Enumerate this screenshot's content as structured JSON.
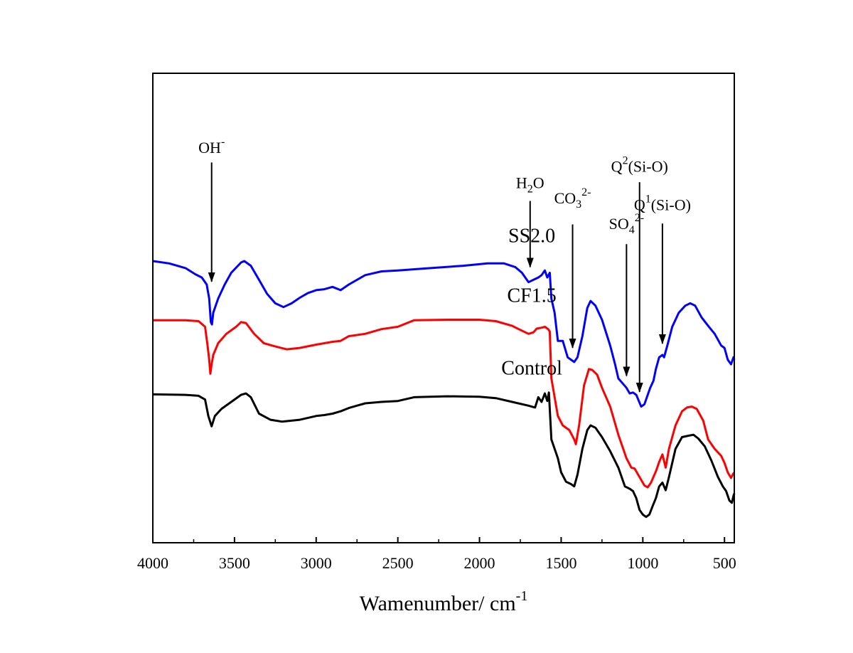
{
  "chart_data": {
    "type": "line",
    "title": "",
    "xlabel": "Wamenumber/ cm",
    "xlabel_sup": "-1",
    "ylabel": "",
    "xlim": [
      4000,
      440
    ],
    "x_reversed": true,
    "y_ticks_shown": false,
    "xticks": [
      "4000",
      "3500",
      "3000",
      "2500",
      "2000",
      "1500",
      "1000",
      "500"
    ],
    "xtick_values": [
      4000,
      3500,
      3000,
      2500,
      2000,
      1500,
      1000,
      500
    ],
    "ylim": [
      0,
      1
    ],
    "series": [
      {
        "name": "Control",
        "color": "#000000",
        "points": [
          [
            4000,
            0.316
          ],
          [
            3800,
            0.315
          ],
          [
            3720,
            0.313
          ],
          [
            3680,
            0.305
          ],
          [
            3660,
            0.27
          ],
          [
            3640,
            0.248
          ],
          [
            3620,
            0.27
          ],
          [
            3580,
            0.285
          ],
          [
            3520,
            0.3
          ],
          [
            3460,
            0.315
          ],
          [
            3430,
            0.318
          ],
          [
            3400,
            0.31
          ],
          [
            3350,
            0.275
          ],
          [
            3280,
            0.262
          ],
          [
            3210,
            0.258
          ],
          [
            3100,
            0.262
          ],
          [
            3000,
            0.27
          ],
          [
            2950,
            0.272
          ],
          [
            2900,
            0.275
          ],
          [
            2850,
            0.28
          ],
          [
            2800,
            0.287
          ],
          [
            2700,
            0.297
          ],
          [
            2600,
            0.3
          ],
          [
            2500,
            0.302
          ],
          [
            2400,
            0.31
          ],
          [
            2200,
            0.312
          ],
          [
            2000,
            0.311
          ],
          [
            1900,
            0.308
          ],
          [
            1800,
            0.3
          ],
          [
            1700,
            0.292
          ],
          [
            1660,
            0.288
          ],
          [
            1640,
            0.31
          ],
          [
            1620,
            0.3
          ],
          [
            1600,
            0.318
          ],
          [
            1585,
            0.302
          ],
          [
            1575,
            0.32
          ],
          [
            1560,
            0.22
          ],
          [
            1520,
            0.18
          ],
          [
            1500,
            0.15
          ],
          [
            1470,
            0.13
          ],
          [
            1440,
            0.125
          ],
          [
            1420,
            0.12
          ],
          [
            1400,
            0.145
          ],
          [
            1370,
            0.2
          ],
          [
            1340,
            0.24
          ],
          [
            1320,
            0.25
          ],
          [
            1290,
            0.245
          ],
          [
            1250,
            0.225
          ],
          [
            1200,
            0.195
          ],
          [
            1150,
            0.16
          ],
          [
            1110,
            0.12
          ],
          [
            1080,
            0.115
          ],
          [
            1060,
            0.11
          ],
          [
            1040,
            0.095
          ],
          [
            1020,
            0.07
          ],
          [
            1000,
            0.06
          ],
          [
            980,
            0.055
          ],
          [
            960,
            0.06
          ],
          [
            940,
            0.078
          ],
          [
            920,
            0.095
          ],
          [
            900,
            0.12
          ],
          [
            880,
            0.128
          ],
          [
            860,
            0.112
          ],
          [
            840,
            0.14
          ],
          [
            800,
            0.2
          ],
          [
            760,
            0.225
          ],
          [
            720,
            0.228
          ],
          [
            690,
            0.23
          ],
          [
            660,
            0.222
          ],
          [
            620,
            0.205
          ],
          [
            580,
            0.175
          ],
          [
            540,
            0.14
          ],
          [
            510,
            0.12
          ],
          [
            490,
            0.11
          ],
          [
            470,
            0.09
          ],
          [
            455,
            0.085
          ],
          [
            445,
            0.1
          ],
          [
            440,
            0.105
          ]
        ]
      },
      {
        "name": "CF1.5",
        "color": "#ff0000",
        "points": [
          [
            4000,
            0.474
          ],
          [
            3800,
            0.474
          ],
          [
            3720,
            0.472
          ],
          [
            3680,
            0.46
          ],
          [
            3665,
            0.42
          ],
          [
            3655,
            0.39
          ],
          [
            3648,
            0.36
          ],
          [
            3640,
            0.38
          ],
          [
            3630,
            0.4
          ],
          [
            3600,
            0.425
          ],
          [
            3550,
            0.445
          ],
          [
            3490,
            0.46
          ],
          [
            3460,
            0.47
          ],
          [
            3430,
            0.468
          ],
          [
            3380,
            0.445
          ],
          [
            3320,
            0.425
          ],
          [
            3250,
            0.418
          ],
          [
            3180,
            0.412
          ],
          [
            3100,
            0.415
          ],
          [
            3000,
            0.422
          ],
          [
            2900,
            0.428
          ],
          [
            2850,
            0.43
          ],
          [
            2800,
            0.44
          ],
          [
            2700,
            0.445
          ],
          [
            2600,
            0.455
          ],
          [
            2500,
            0.46
          ],
          [
            2400,
            0.474
          ],
          [
            2200,
            0.475
          ],
          [
            2000,
            0.475
          ],
          [
            1900,
            0.472
          ],
          [
            1800,
            0.462
          ],
          [
            1760,
            0.455
          ],
          [
            1700,
            0.445
          ],
          [
            1670,
            0.448
          ],
          [
            1650,
            0.456
          ],
          [
            1620,
            0.458
          ],
          [
            1600,
            0.46
          ],
          [
            1580,
            0.455
          ],
          [
            1570,
            0.45
          ],
          [
            1560,
            0.35
          ],
          [
            1520,
            0.27
          ],
          [
            1490,
            0.25
          ],
          [
            1450,
            0.24
          ],
          [
            1420,
            0.22
          ],
          [
            1410,
            0.21
          ],
          [
            1390,
            0.25
          ],
          [
            1360,
            0.335
          ],
          [
            1330,
            0.37
          ],
          [
            1310,
            0.368
          ],
          [
            1280,
            0.358
          ],
          [
            1250,
            0.33
          ],
          [
            1200,
            0.29
          ],
          [
            1150,
            0.23
          ],
          [
            1100,
            0.18
          ],
          [
            1070,
            0.16
          ],
          [
            1050,
            0.158
          ],
          [
            1020,
            0.14
          ],
          [
            990,
            0.122
          ],
          [
            970,
            0.118
          ],
          [
            950,
            0.128
          ],
          [
            920,
            0.152
          ],
          [
            900,
            0.172
          ],
          [
            880,
            0.188
          ],
          [
            860,
            0.16
          ],
          [
            840,
            0.2
          ],
          [
            800,
            0.25
          ],
          [
            760,
            0.28
          ],
          [
            730,
            0.288
          ],
          [
            700,
            0.29
          ],
          [
            670,
            0.285
          ],
          [
            630,
            0.26
          ],
          [
            600,
            0.22
          ],
          [
            560,
            0.2
          ],
          [
            520,
            0.185
          ],
          [
            500,
            0.17
          ],
          [
            480,
            0.15
          ],
          [
            460,
            0.138
          ],
          [
            445,
            0.148
          ],
          [
            440,
            0.148
          ]
        ]
      },
      {
        "name": "SS2.0",
        "color": "#0000ff",
        "points": [
          [
            4000,
            0.6
          ],
          [
            3900,
            0.595
          ],
          [
            3800,
            0.585
          ],
          [
            3740,
            0.572
          ],
          [
            3700,
            0.565
          ],
          [
            3670,
            0.55
          ],
          [
            3655,
            0.52
          ],
          [
            3645,
            0.47
          ],
          [
            3638,
            0.465
          ],
          [
            3630,
            0.49
          ],
          [
            3600,
            0.52
          ],
          [
            3560,
            0.55
          ],
          [
            3520,
            0.575
          ],
          [
            3460,
            0.597
          ],
          [
            3440,
            0.6
          ],
          [
            3400,
            0.59
          ],
          [
            3350,
            0.56
          ],
          [
            3300,
            0.53
          ],
          [
            3250,
            0.51
          ],
          [
            3200,
            0.502
          ],
          [
            3150,
            0.51
          ],
          [
            3100,
            0.522
          ],
          [
            3050,
            0.532
          ],
          [
            3000,
            0.538
          ],
          [
            2950,
            0.54
          ],
          [
            2900,
            0.545
          ],
          [
            2850,
            0.538
          ],
          [
            2800,
            0.55
          ],
          [
            2700,
            0.57
          ],
          [
            2600,
            0.578
          ],
          [
            2500,
            0.58
          ],
          [
            2300,
            0.585
          ],
          [
            2100,
            0.59
          ],
          [
            1950,
            0.595
          ],
          [
            1850,
            0.595
          ],
          [
            1780,
            0.587
          ],
          [
            1740,
            0.575
          ],
          [
            1700,
            0.555
          ],
          [
            1670,
            0.56
          ],
          [
            1640,
            0.565
          ],
          [
            1620,
            0.57
          ],
          [
            1600,
            0.58
          ],
          [
            1585,
            0.565
          ],
          [
            1570,
            0.575
          ],
          [
            1560,
            0.52
          ],
          [
            1540,
            0.49
          ],
          [
            1520,
            0.43
          ],
          [
            1490,
            0.43
          ],
          [
            1460,
            0.395
          ],
          [
            1440,
            0.39
          ],
          [
            1420,
            0.385
          ],
          [
            1400,
            0.395
          ],
          [
            1370,
            0.44
          ],
          [
            1340,
            0.5
          ],
          [
            1320,
            0.515
          ],
          [
            1290,
            0.505
          ],
          [
            1250,
            0.475
          ],
          [
            1200,
            0.42
          ],
          [
            1170,
            0.38
          ],
          [
            1150,
            0.35
          ],
          [
            1100,
            0.33
          ],
          [
            1080,
            0.318
          ],
          [
            1060,
            0.32
          ],
          [
            1040,
            0.315
          ],
          [
            1010,
            0.29
          ],
          [
            990,
            0.295
          ],
          [
            970,
            0.315
          ],
          [
            955,
            0.33
          ],
          [
            935,
            0.345
          ],
          [
            920,
            0.37
          ],
          [
            900,
            0.395
          ],
          [
            880,
            0.4
          ],
          [
            870,
            0.395
          ],
          [
            850,
            0.42
          ],
          [
            820,
            0.46
          ],
          [
            780,
            0.49
          ],
          [
            740,
            0.505
          ],
          [
            710,
            0.51
          ],
          [
            680,
            0.505
          ],
          [
            640,
            0.48
          ],
          [
            600,
            0.462
          ],
          [
            560,
            0.445
          ],
          [
            520,
            0.42
          ],
          [
            500,
            0.415
          ],
          [
            480,
            0.39
          ],
          [
            460,
            0.38
          ],
          [
            445,
            0.395
          ],
          [
            440,
            0.39
          ]
        ]
      }
    ],
    "series_labels": [
      {
        "text": "SS2.0",
        "x": 1680,
        "y": 0.64
      },
      {
        "text": "CF1.5",
        "x": 1680,
        "y": 0.513
      },
      {
        "text": "Control",
        "x": 1680,
        "y": 0.358
      }
    ],
    "annotations": [
      {
        "base": "OH",
        "sup": "-",
        "sub": "",
        "tail": "",
        "x": 3640,
        "label_y": 0.83,
        "arrow_top": 0.81,
        "arrow_tip": 0.535
      },
      {
        "base": "H",
        "sub": "2",
        "tail": "O",
        "sup": "",
        "x": 1690,
        "label_y": 0.755,
        "arrow_top": 0.728,
        "arrow_tip": 0.566
      },
      {
        "base": "CO",
        "sub": "3",
        "sup": "2-",
        "tail": "",
        "x": 1430,
        "label_y": 0.723,
        "arrow_top": 0.678,
        "arrow_tip": 0.394
      },
      {
        "base": "SO",
        "sub": "4",
        "sup": "2-",
        "tail": "",
        "x": 1100,
        "label_y": 0.668,
        "arrow_top": 0.636,
        "arrow_tip": 0.334
      },
      {
        "base": "Q",
        "sup": "2",
        "sub": "",
        "tail": "(Si-O)",
        "x": 1020,
        "label_y": 0.79,
        "arrow_top": 0.768,
        "arrow_tip": 0.3
      },
      {
        "base": "Q",
        "sup": "1",
        "sub": "",
        "tail": "(Si-O)",
        "x": 880,
        "label_y": 0.708,
        "arrow_top": 0.68,
        "arrow_tip": 0.403
      }
    ]
  }
}
